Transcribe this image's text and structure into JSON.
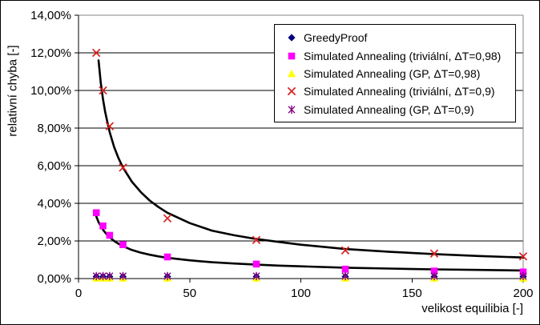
{
  "chart_data": {
    "type": "scatter",
    "title": "",
    "xlabel": "velikost equilibia [-]",
    "ylabel": "relativní chyba [-]",
    "xlim": [
      0,
      200
    ],
    "ylim_pct": [
      0,
      14
    ],
    "grid": "horizontal-black-gridlines",
    "legend_position": "top-right-inside",
    "x_ticks": [
      0,
      50,
      100,
      150,
      200
    ],
    "x_tick_labels": [
      "0",
      "50",
      "100",
      "150",
      "200"
    ],
    "y_ticks_pct": [
      0,
      2,
      4,
      6,
      8,
      10,
      12,
      14
    ],
    "y_tick_labels": [
      "0,00%",
      "2,00%",
      "4,00%",
      "6,00%",
      "8,00%",
      "10,00%",
      "12,00%",
      "14,00%"
    ],
    "x": [
      8,
      11,
      14,
      20,
      40,
      80,
      120,
      160,
      200
    ],
    "series": [
      {
        "name": "GreedyProof",
        "marker": "diamond",
        "color": "#000080",
        "values_pct": [
          0.1,
          0.1,
          0.1,
          0.1,
          0.1,
          0.1,
          0.1,
          0.1,
          0.1
        ]
      },
      {
        "name": "Simulated Annealing (triviální, ΔT=0,98)",
        "marker": "square",
        "color": "#FF00FF",
        "values_pct": [
          3.5,
          2.8,
          2.3,
          1.8,
          1.15,
          0.77,
          0.5,
          0.4,
          0.35
        ]
      },
      {
        "name": "Simulated Annealing (GP, ΔT=0,98)",
        "marker": "triangle",
        "color": "#FFFF00",
        "values_pct": [
          0.02,
          0.02,
          0.02,
          0.02,
          0.02,
          0.02,
          0.02,
          0.02,
          0.02
        ]
      },
      {
        "name": "Simulated Annealing (triviální, ΔT=0,9)",
        "marker": "x",
        "color": "#D92121",
        "values_pct": [
          12.0,
          10.0,
          8.1,
          5.9,
          3.2,
          2.05,
          1.5,
          1.33,
          1.18
        ]
      },
      {
        "name": "Simulated Annealing (GP, ΔT=0,9)",
        "marker": "star",
        "color": "#800080",
        "values_pct": [
          0.13,
          0.13,
          0.13,
          0.13,
          0.13,
          0.13,
          0.13,
          0.13,
          0.13
        ]
      }
    ],
    "trend_curves": [
      {
        "for_series": "Simulated Annealing (triviální, ΔT=0,9)",
        "color": "#000000",
        "points_pct": [
          [
            9,
            11.6
          ],
          [
            10,
            10.4
          ],
          [
            11,
            9.55
          ],
          [
            12,
            8.85
          ],
          [
            13,
            8.3
          ],
          [
            14,
            7.8
          ],
          [
            16,
            7.0
          ],
          [
            18,
            6.4
          ],
          [
            20,
            5.9
          ],
          [
            24,
            5.15
          ],
          [
            28,
            4.6
          ],
          [
            32,
            4.15
          ],
          [
            36,
            3.8
          ],
          [
            40,
            3.5
          ],
          [
            50,
            2.95
          ],
          [
            60,
            2.55
          ],
          [
            70,
            2.3
          ],
          [
            80,
            2.1
          ],
          [
            90,
            1.95
          ],
          [
            100,
            1.8
          ],
          [
            120,
            1.57
          ],
          [
            140,
            1.42
          ],
          [
            160,
            1.3
          ],
          [
            180,
            1.2
          ],
          [
            200,
            1.12
          ]
        ]
      },
      {
        "for_series": "Simulated Annealing (triviální, ΔT=0,98)",
        "color": "#000000",
        "points_pct": [
          [
            8,
            3.3
          ],
          [
            9,
            3.0
          ],
          [
            10,
            2.8
          ],
          [
            11,
            2.6
          ],
          [
            12,
            2.45
          ],
          [
            13,
            2.3
          ],
          [
            14,
            2.2
          ],
          [
            16,
            2.0
          ],
          [
            18,
            1.85
          ],
          [
            20,
            1.72
          ],
          [
            24,
            1.52
          ],
          [
            28,
            1.38
          ],
          [
            32,
            1.27
          ],
          [
            36,
            1.18
          ],
          [
            40,
            1.1
          ],
          [
            50,
            0.97
          ],
          [
            60,
            0.87
          ],
          [
            70,
            0.8
          ],
          [
            80,
            0.74
          ],
          [
            90,
            0.69
          ],
          [
            100,
            0.65
          ],
          [
            120,
            0.58
          ],
          [
            140,
            0.53
          ],
          [
            160,
            0.49
          ],
          [
            180,
            0.46
          ],
          [
            200,
            0.43
          ]
        ]
      }
    ]
  },
  "colors": {
    "plot_border_gray": "#848484",
    "axis_black": "#000000",
    "background": "#FFFFFF",
    "trend_line": "#000000"
  }
}
